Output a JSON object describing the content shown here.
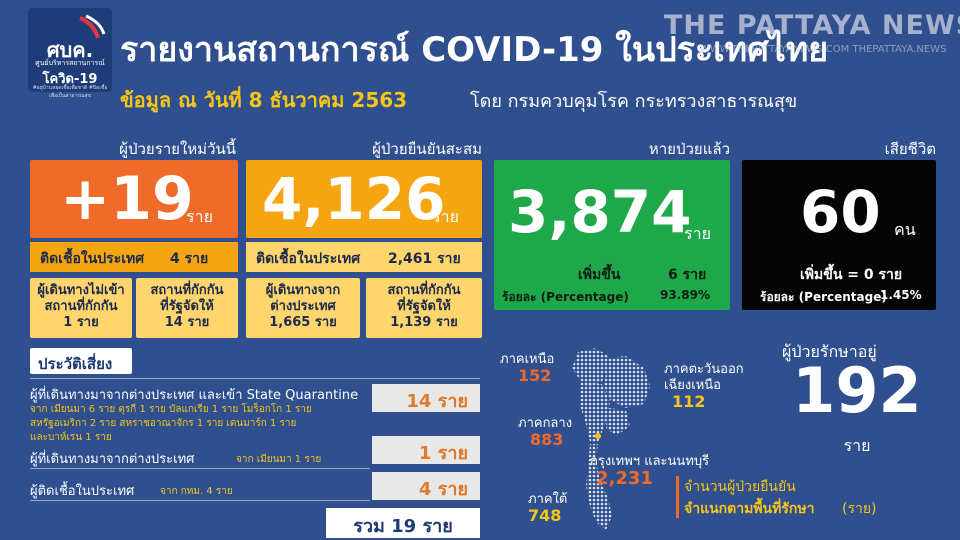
{
  "logo": {
    "main": "ศบค.",
    "sub1": "ศูนย์บริหารสถานการณ์",
    "sub2": "โควิด-19",
    "sub3": "#อยู่บ้านหยุดเชื้อเพื่อชาติ #ปิดเชื้อเพื่อเป็นสาธารณสุข"
  },
  "header": {
    "title": "รายงานสถานการณ์ COVID-19 ในประเทศไทย",
    "subtitle": "ข้อมูล ณ วันที่ 8 ธันวาคม 2563",
    "source": "โดย กรมควบคุมโรค กระทรวงสาธารณสุข"
  },
  "watermark": {
    "main": "THE PATTAYA NEWS",
    "sub": "WWW.THEPATTAYANEWS.COM   THEPATTAYA.NEWS"
  },
  "new_cases": {
    "header": "ผู้ป่วยรายใหม่วันนี้",
    "value": "+19",
    "unit": "ราย",
    "local_label": "ติดเชื้อในประเทศ",
    "local_value": "4 ราย",
    "box1_line1": "ผู้เดินทางไม่เข้า",
    "box1_line2": "สถานที่กักกัน",
    "box1_line3": "1 ราย",
    "box2_line1": "สถานที่กักกัน",
    "box2_line2": "ที่รัฐจัดให้",
    "box2_line3": "14 ราย",
    "color_card": "#f06a2a"
  },
  "cumulative": {
    "header": "ผู้ป่วยยืนยันสะสม",
    "value": "4,126",
    "unit": "ราย",
    "local_label": "ติดเชื้อในประเทศ",
    "local_value": "2,461 ราย",
    "box1_line1": "ผู้เดินทางจาก",
    "box1_line2": "ต่างประเทศ",
    "box1_line3": "1,665 ราย",
    "box2_line1": "สถานที่กักกัน",
    "box2_line2": "ที่รัฐจัดให้",
    "box2_line3": "1,139 ราย",
    "color_card": "#f5a512"
  },
  "recovered": {
    "header": "หายป่วยแล้ว",
    "value": "3,874",
    "unit": "ราย",
    "increase_label": "เพิ่มขึ้น",
    "increase_value": "6 ราย",
    "pct_label": "ร้อยละ (Percentage)",
    "pct_value": "93.89%",
    "color_card": "#1ea84a"
  },
  "deaths": {
    "header": "เสียชีวิต",
    "value": "60",
    "unit": "คน",
    "increase_text": "เพิ่มขึ้น = 0 ราย",
    "pct_label": "ร้อยละ (Percentage)",
    "pct_value": "1.45%",
    "color_card": "#050505"
  },
  "risk": {
    "title": "ประวัติเสี่ยง",
    "rows": [
      {
        "label": "ผู้ที่เดินทางมาจากต่างประเทศ  และเข้า State Quarantine",
        "detail1": "จาก เมียนมา 6 ราย ตุรกี 1 ราย บัลแกเรีย 1 ราย โมร็อกโก 1 ราย",
        "detail2": "สหรัฐอเมริกา 2 ราย  สหราชอาณาจักร 1 ราย เดนมาร์ก 1 ราย",
        "detail3": "และบาห์เรน 1 ราย",
        "value": "14 ราย"
      },
      {
        "label": "ผู้ที่เดินทางมาจากต่างประเทศ",
        "detail1": "จาก เมียนมา 1 ราย",
        "value": "1 ราย"
      },
      {
        "label": "ผู้ติดเชื้อในประเทศ",
        "detail1": "จาก กทม. 4 ราย",
        "value": "4 ราย"
      }
    ],
    "total": "รวม 19 ราย"
  },
  "map": {
    "regions": [
      {
        "name": "ภาคเหนือ",
        "value": "152"
      },
      {
        "name": "ภาคกลาง",
        "value": "883"
      },
      {
        "name": "ภาคใต้",
        "value": "748"
      },
      {
        "name": "ภาคตะวันออก",
        "name2": "เฉียงเหนือ",
        "value": "112"
      },
      {
        "name": "กรุงเทพฯ และนนทบุรี",
        "value": "2,231"
      }
    ],
    "legend_line1": "จำนวนผู้ป่วยยืนยัน",
    "legend_line2": "จำแนกตามพื้นที่รักษา",
    "legend_unit": "(ราย)"
  },
  "in_treatment": {
    "label": "ผู้ป่วยรักษาอยู่",
    "value": "192",
    "unit": "ราย"
  }
}
